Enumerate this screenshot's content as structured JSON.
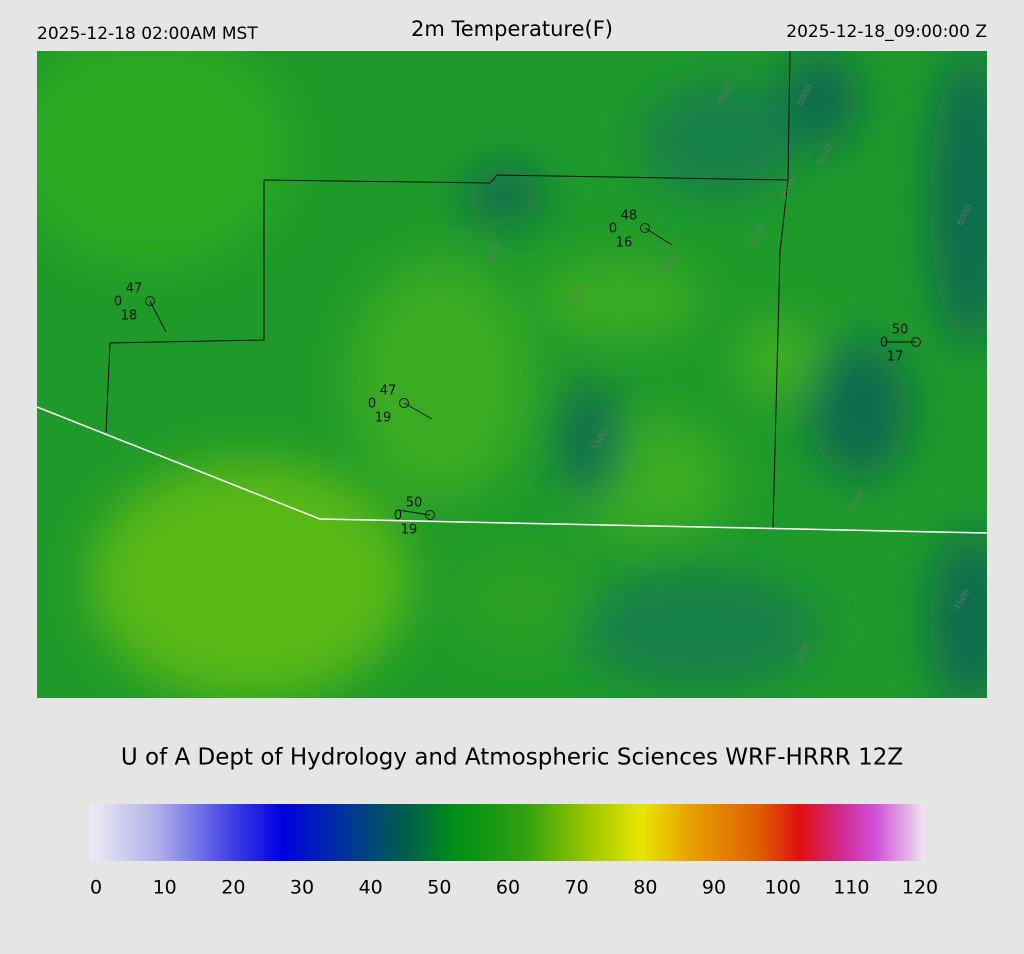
{
  "header": {
    "left": "2025-12-18 02:00AM MST",
    "title": "2m Temperature(F)",
    "right": "2025-12-18_09:00:00 Z"
  },
  "stations": [
    {
      "temp": "47",
      "wind": "0",
      "dew": "18"
    },
    {
      "temp": "47",
      "wind": "0",
      "dew": "19"
    },
    {
      "temp": "50",
      "wind": "0",
      "dew": "19"
    },
    {
      "temp": "48",
      "wind": "0",
      "dew": "16"
    },
    {
      "temp": "50",
      "wind": "0",
      "dew": "17"
    }
  ],
  "contours": [
    "6000",
    "5500",
    "5500",
    "6000",
    "5000",
    "5500",
    "4500",
    "5500",
    "5500",
    "4500",
    "5000",
    "6000",
    "4500"
  ],
  "footer": "U of A Dept of Hydrology and Atmospheric Sciences WRF-HRRR 12Z",
  "colorbar": {
    "ticks": [
      "0",
      "10",
      "20",
      "30",
      "40",
      "50",
      "60",
      "70",
      "80",
      "90",
      "100",
      "110",
      "120"
    ]
  }
}
